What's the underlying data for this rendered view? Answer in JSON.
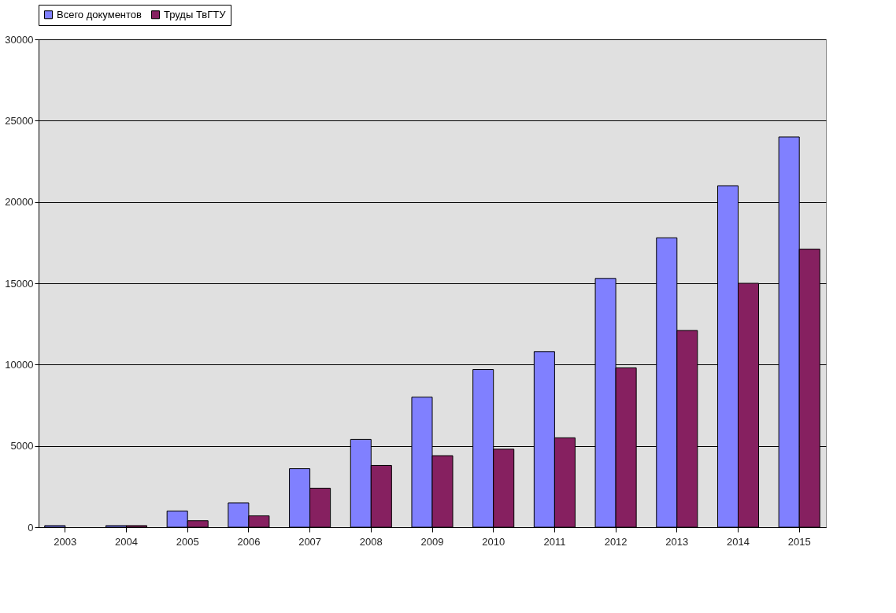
{
  "chart_data": {
    "type": "bar",
    "categories": [
      "2003",
      "2004",
      "2005",
      "2006",
      "2007",
      "2008",
      "2009",
      "2010",
      "2011",
      "2012",
      "2013",
      "2014",
      "2015"
    ],
    "series": [
      {
        "name": "Всего документов",
        "color": "#8080ff",
        "values": [
          100,
          100,
          1000,
          1500,
          3600,
          5400,
          8000,
          9700,
          10800,
          15300,
          17800,
          21000,
          24000
        ]
      },
      {
        "name": "Труды ТвГТУ",
        "color": "#862060",
        "values": [
          null,
          100,
          400,
          700,
          2400,
          3800,
          4400,
          4800,
          5500,
          9800,
          12100,
          15000,
          17100
        ]
      }
    ],
    "ylim": [
      0,
      30000
    ],
    "yticks": [
      0,
      5000,
      10000,
      15000,
      20000,
      25000,
      30000
    ],
    "grid": "y",
    "legend": "top"
  }
}
